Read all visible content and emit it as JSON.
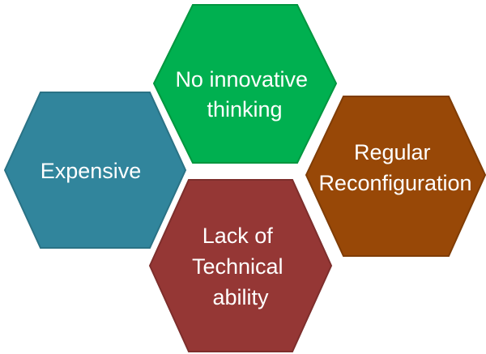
{
  "hexagons": [
    {
      "id": "expensive",
      "lines": [
        "Expensive"
      ],
      "color": "#31859C",
      "shadow": "#2A7285"
    },
    {
      "id": "no-innovative-thinking",
      "lines": [
        "No innovative",
        "thinking"
      ],
      "color": "#00B050",
      "shadow": "#00963F"
    },
    {
      "id": "regular-reconfiguration",
      "lines": [
        "Regular",
        "Reconfiguration"
      ],
      "color": "#984807",
      "shadow": "#7F3C05"
    },
    {
      "id": "lack-of-technical-ability",
      "lines": [
        "Lack of",
        "Technical",
        "ability"
      ],
      "color": "#953735",
      "shadow": "#7D2E2C"
    }
  ]
}
